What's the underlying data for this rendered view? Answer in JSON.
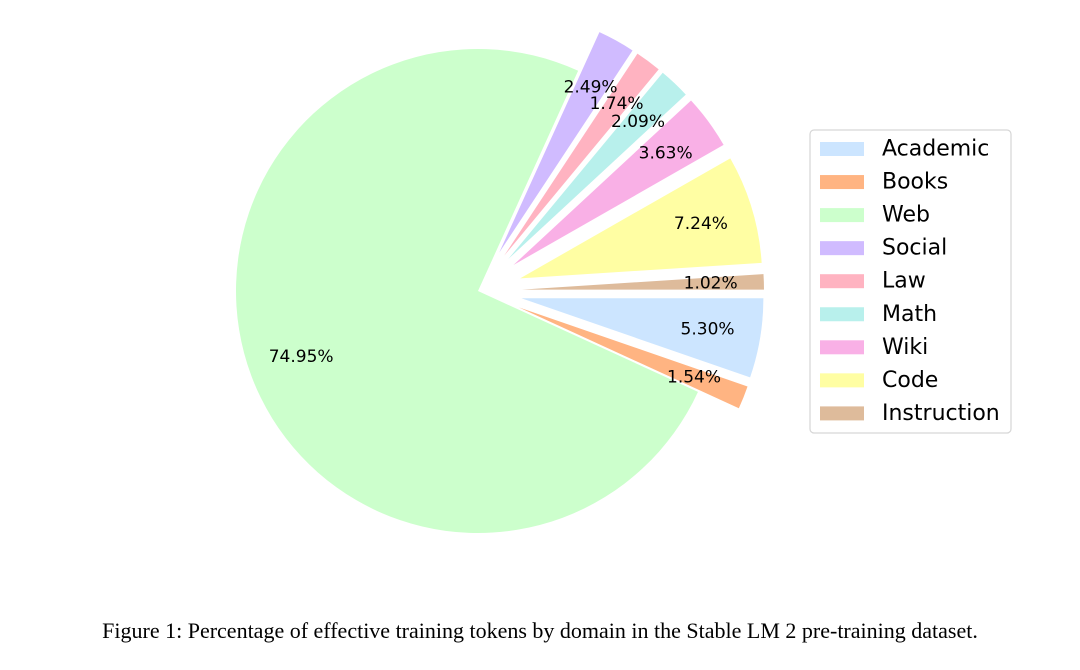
{
  "caption": "Figure 1: Percentage of effective training tokens by domain in the Stable LM 2 pre-training dataset.",
  "chart_data": {
    "type": "pie",
    "title": "",
    "start_angle_deg": 0,
    "direction": "clockwise",
    "legend_position": "right",
    "slices": [
      {
        "name": "Academic",
        "value": 5.3,
        "label": "5.30%",
        "color": "#cce5ff",
        "exploded": true
      },
      {
        "name": "Books",
        "value": 1.54,
        "label": "1.54%",
        "color": "#ffb482",
        "exploded": true
      },
      {
        "name": "Web",
        "value": 74.95,
        "label": "74.95%",
        "color": "#ccffcc",
        "exploded": false
      },
      {
        "name": "Social",
        "value": 2.49,
        "label": "2.49%",
        "color": "#d0bbff",
        "exploded": true
      },
      {
        "name": "Law",
        "value": 1.74,
        "label": "1.74%",
        "color": "#ffb3c1",
        "exploded": true
      },
      {
        "name": "Math",
        "value": 2.09,
        "label": "2.09%",
        "color": "#b8f0ec",
        "exploded": true
      },
      {
        "name": "Wiki",
        "value": 3.63,
        "label": "3.63%",
        "color": "#f9b0e6",
        "exploded": true
      },
      {
        "name": "Code",
        "value": 7.24,
        "label": "7.24%",
        "color": "#fffea3",
        "exploded": true
      },
      {
        "name": "Instruction",
        "value": 1.02,
        "label": "1.02%",
        "color": "#debb9b",
        "exploded": true
      }
    ]
  }
}
